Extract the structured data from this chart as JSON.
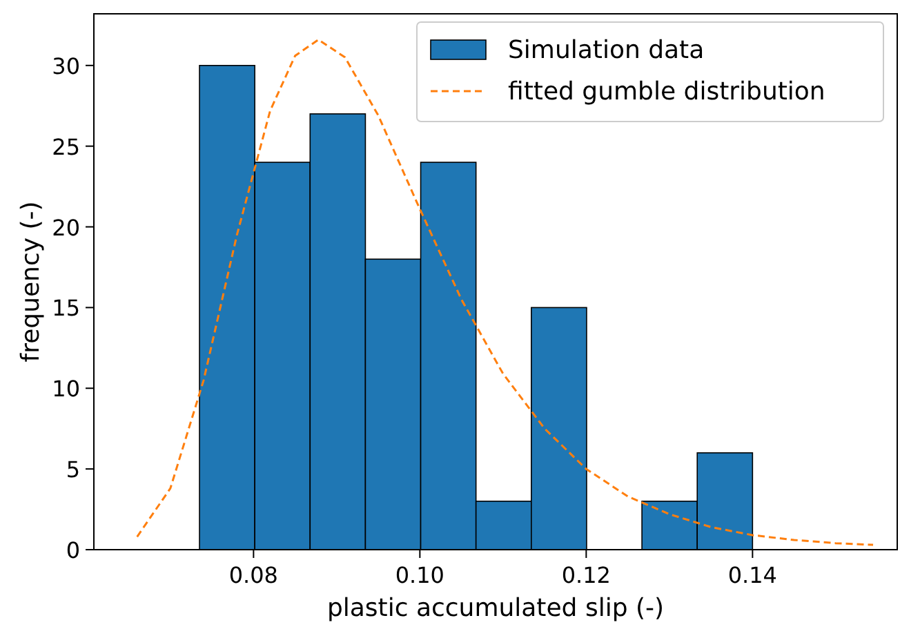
{
  "chart_data": {
    "type": "histogram",
    "xlabel": "plastic accumulated slip (-)",
    "ylabel": "frequency (-)",
    "xlim": [
      0.0608,
      0.1574
    ],
    "ylim": [
      0,
      33.2
    ],
    "xticks": [
      {
        "value": 0.08,
        "label": "0.08"
      },
      {
        "value": 0.1,
        "label": "0.10"
      },
      {
        "value": 0.12,
        "label": "0.12"
      },
      {
        "value": 0.14,
        "label": "0.14"
      }
    ],
    "yticks": [
      0,
      5,
      10,
      15,
      20,
      25,
      30
    ],
    "grid": false,
    "legend": "top right",
    "series": [
      {
        "name": "Simulation data",
        "color": "#1f77b4",
        "bins": [
          0.0735,
          0.08015,
          0.0868,
          0.09345,
          0.1001,
          0.10675,
          0.1134,
          0.12005,
          0.1267,
          0.13335,
          0.14
        ],
        "values": [
          30,
          24,
          27,
          18,
          24,
          3,
          15,
          0,
          3,
          6
        ]
      },
      {
        "name": "fitted gumble distribution",
        "type": "line",
        "color": "#ff7f0e",
        "line_style": "dashed",
        "x": [
          0.066,
          0.07,
          0.074,
          0.078,
          0.082,
          0.085,
          0.0878,
          0.091,
          0.095,
          0.1,
          0.105,
          0.11,
          0.115,
          0.12,
          0.125,
          0.13,
          0.135,
          0.14,
          0.145,
          0.15,
          0.1545
        ],
        "values": [
          0.8,
          3.8,
          10.5,
          19.5,
          27.2,
          30.6,
          31.6,
          30.5,
          26.9,
          21.1,
          15.5,
          10.9,
          7.5,
          5.0,
          3.3,
          2.2,
          1.4,
          0.9,
          0.6,
          0.4,
          0.3
        ]
      }
    ]
  }
}
